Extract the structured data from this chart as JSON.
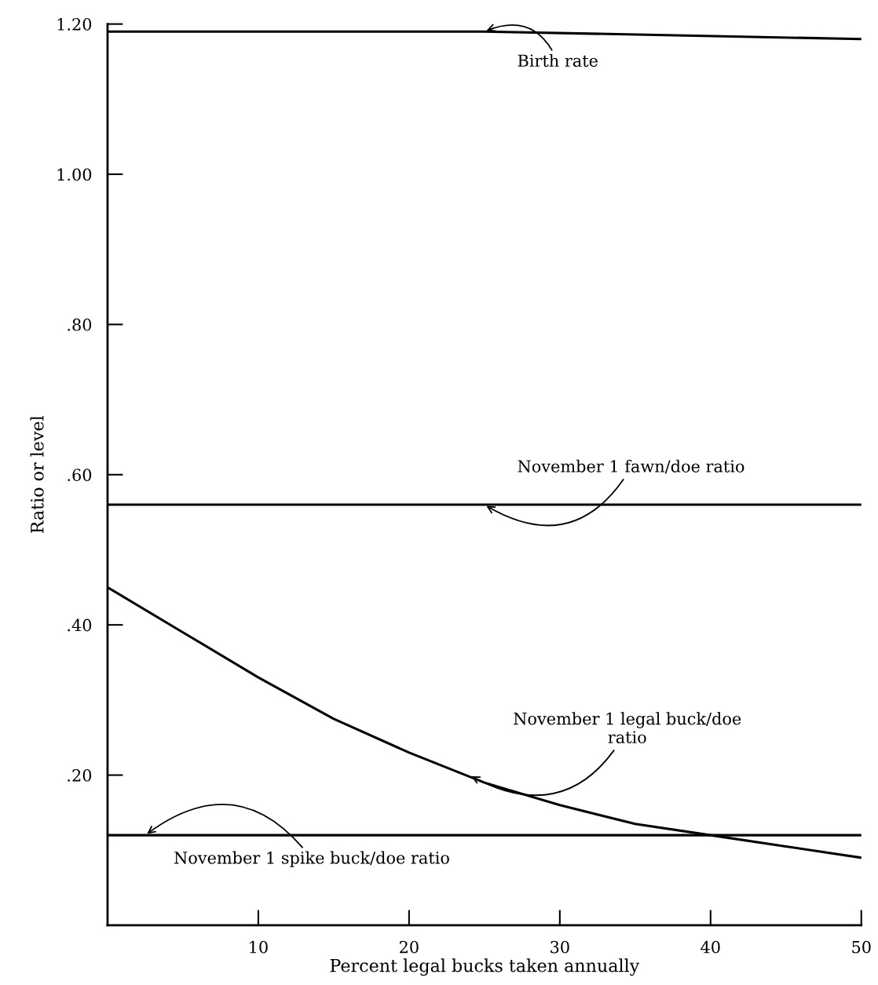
{
  "chart_data": {
    "type": "line",
    "xlabel": "Percent legal bucks taken annually",
    "ylabel": "Ratio or level",
    "series": [
      {
        "color": "#000000",
        "x": [
          0,
          25,
          50
        ],
        "values": [
          1.19,
          1.19,
          1.18
        ]
      },
      {
        "color": "#000000",
        "x": [
          0,
          25,
          50
        ],
        "values": [
          0.56,
          0.56,
          0.56
        ]
      },
      {
        "color": "#000000",
        "x": [
          0,
          5,
          10,
          15,
          20,
          25,
          30,
          35,
          40,
          45,
          50
        ],
        "values": [
          0.45,
          0.39,
          0.33,
          0.275,
          0.23,
          0.19,
          0.16,
          0.135,
          0.12,
          0.105,
          0.09
        ]
      },
      {
        "color": "#000000",
        "x": [
          0,
          25,
          50
        ],
        "values": [
          0.12,
          0.12,
          0.12
        ]
      }
    ],
    "xlim": [
      0,
      50
    ],
    "ylim": [
      0,
      1.2
    ],
    "xticks": [
      10,
      20,
      30,
      40,
      50
    ],
    "yticks": [
      {
        "value": 0.2,
        "label": ".20"
      },
      {
        "value": 0.4,
        "label": ".40"
      },
      {
        "value": 0.6,
        "label": ".60"
      },
      {
        "value": 0.8,
        "label": ".80"
      },
      {
        "value": 1.0,
        "label": "1.00"
      },
      {
        "value": 1.2,
        "label": "1.20"
      }
    ],
    "grid": false,
    "legend": false,
    "marker": "none",
    "line_style": "solid",
    "annotations": [
      {
        "text": "Birth rate",
        "x": 25,
        "y": 1.19
      },
      {
        "text": "November 1 fawn/doe ratio",
        "x": 25,
        "y": 0.56
      },
      {
        "text": "November 1 legal buck/doe\nratio",
        "x": 24,
        "y": 0.2
      },
      {
        "text": "November 1 spike buck/doe ratio",
        "x": 2.5,
        "y": 0.12
      }
    ]
  }
}
